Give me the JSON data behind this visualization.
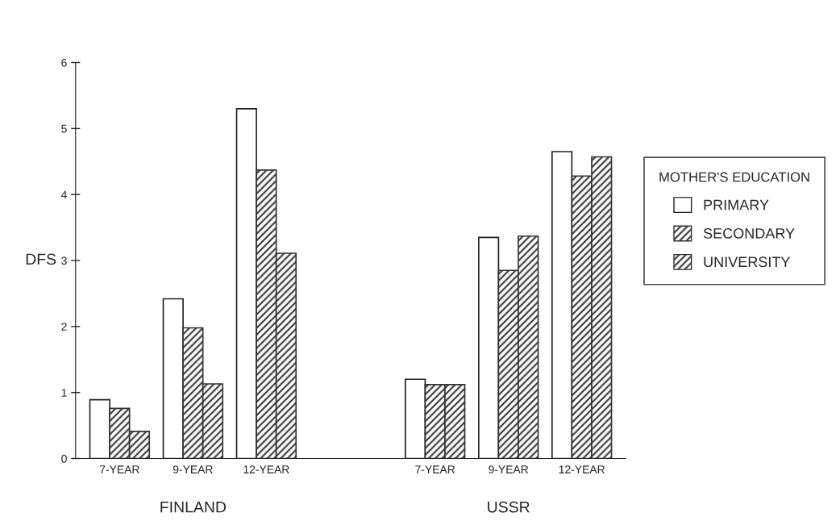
{
  "chart_data": {
    "type": "bar",
    "ylabel": "DFS",
    "legend_title": "MOTHER'S EDUCATION",
    "categories": [
      "7-YEAR",
      "9-YEAR",
      "12-YEAR",
      "7-YEAR",
      "9-YEAR",
      "12-YEAR"
    ],
    "series": [
      {
        "name": "PRIMARY",
        "color": "#ffffff",
        "values": [
          0.89,
          2.42,
          5.3,
          1.2,
          3.35,
          4.65
        ]
      },
      {
        "name": "SECONDARY",
        "color": "#333333",
        "values": [
          0.76,
          1.98,
          4.37,
          1.12,
          2.85,
          4.28
        ]
      },
      {
        "name": "UNIVERSITY",
        "color": "#333333",
        "values": [
          0.41,
          1.13,
          3.11,
          1.12,
          3.37,
          4.57
        ]
      }
    ],
    "annotations": [
      "FINLAND",
      "USSR"
    ],
    "ylim": [
      0,
      6
    ],
    "yticks": [
      0,
      1,
      2,
      3,
      4,
      5,
      6
    ],
    "grid": false,
    "legend": "right"
  }
}
